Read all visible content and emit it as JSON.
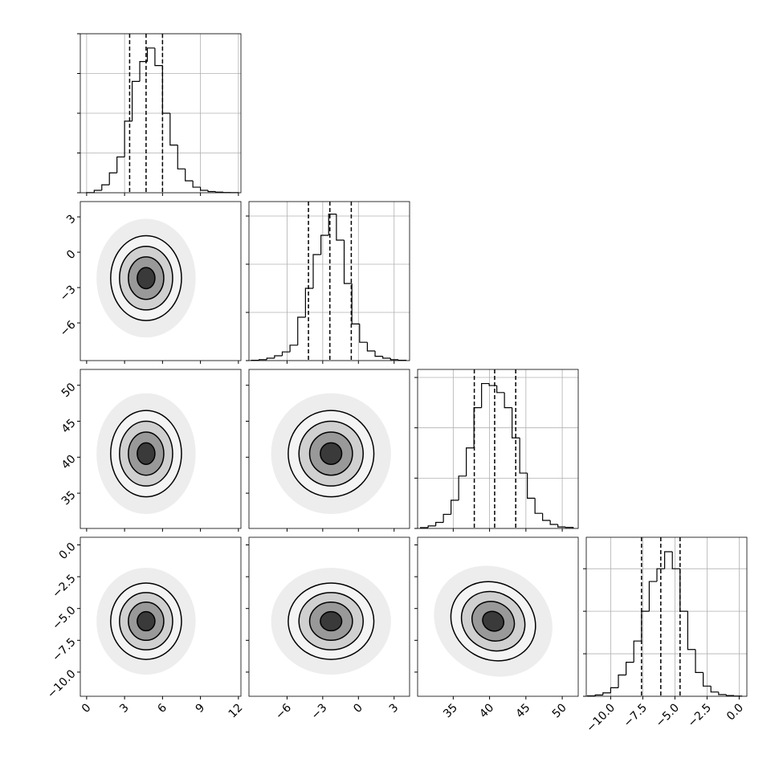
{
  "chart_data": {
    "type": "corner",
    "grid": true,
    "line_color": "#000000",
    "grid_color": "#b0b0b0",
    "contour_fills": [
      "#f4f4f4",
      "#d0d0d0",
      "#999999",
      "#3a3a3a"
    ],
    "params": [
      {
        "lim": [
          -0.5,
          12.2
        ],
        "ticks": [
          0,
          3,
          6,
          9,
          12
        ],
        "quantiles": [
          3.4,
          4.7,
          6.0
        ],
        "contour_radii": [
          0.7,
          1.4,
          2.1,
          2.8
        ],
        "bins": [
          0,
          0.6,
          1.2,
          1.8,
          2.4,
          3,
          3.6,
          4.2,
          4.8,
          5.4,
          6,
          6.6,
          7.2,
          7.8,
          8.4,
          9,
          9.6,
          10.2,
          10.8,
          11.4,
          12
        ],
        "counts": [
          2,
          30,
          100,
          250,
          450,
          900,
          1400,
          1650,
          1820,
          1600,
          1000,
          600,
          300,
          150,
          70,
          30,
          15,
          8,
          3,
          1
        ],
        "ylim": [
          0,
          2000
        ],
        "yticks": [
          0,
          500,
          1000,
          1500,
          2000
        ]
      },
      {
        "lim": [
          -9.2,
          4.3
        ],
        "ticks": [
          {
            "value": -6,
            "label": "−6"
          },
          {
            "value": -3,
            "label": "−3"
          },
          0,
          3
        ],
        "quantiles": [
          -4.2,
          -2.4,
          -0.6
        ],
        "contour_radii": [
          0.9,
          1.8,
          2.7,
          3.6
        ],
        "bins": [
          -9,
          -8.35,
          -7.7,
          -7.05,
          -6.4,
          -5.75,
          -5.1,
          -4.45,
          -3.8,
          -3.15,
          -2.5,
          -1.85,
          -1.2,
          -0.55,
          0.1,
          0.75,
          1.4,
          2.05,
          2.7,
          3.35,
          4
        ],
        "counts": [
          3,
          10,
          25,
          50,
          90,
          160,
          450,
          750,
          1100,
          1300,
          1520,
          1250,
          800,
          380,
          190,
          100,
          45,
          25,
          10,
          3
        ],
        "ylim": [
          0,
          1650
        ],
        "yticks": [
          0,
          500,
          1000,
          1500
        ]
      },
      {
        "lim": [
          30.1,
          52.2
        ],
        "ticks": [
          35,
          40,
          45,
          50
        ],
        "quantiles": [
          37.9,
          40.7,
          43.6
        ],
        "contour_radii": [
          1.5,
          3,
          4.5,
          6
        ],
        "bins": [
          30.5,
          31.55,
          32.6,
          33.65,
          34.7,
          35.75,
          36.8,
          37.85,
          38.9,
          39.95,
          41,
          42.05,
          43.1,
          44.15,
          45.2,
          46.25,
          47.3,
          48.35,
          49.4,
          50.45,
          51.5
        ],
        "counts": [
          8,
          25,
          60,
          140,
          280,
          520,
          800,
          1200,
          1440,
          1420,
          1350,
          1200,
          900,
          550,
          300,
          150,
          80,
          40,
          15,
          10
        ],
        "ylim": [
          0,
          1580
        ],
        "yticks": [
          0,
          500,
          1000,
          1500
        ]
      },
      {
        "lim": [
          -11.9,
          0.6
        ],
        "ticks": [
          {
            "value": -10,
            "label": "−10.0"
          },
          {
            "value": -7.5,
            "label": "−7.5"
          },
          {
            "value": -5,
            "label": "−5.0"
          },
          {
            "value": -2.5,
            "label": "−2.5"
          },
          {
            "value": 0,
            "label": "0.0"
          }
        ],
        "quantiles": [
          -7.6,
          -6.1,
          -4.6
        ],
        "contour_radii": [
          0.75,
          1.5,
          2.25,
          3
        ],
        "bins": [
          -11.8,
          -11.2,
          -10.6,
          -10,
          -9.4,
          -8.8,
          -8.2,
          -7.6,
          -7,
          -6.4,
          -5.8,
          -5.2,
          -4.6,
          -4,
          -3.4,
          -2.8,
          -2.2,
          -1.6,
          -1,
          -0.4,
          0.2
        ],
        "counts": [
          5,
          15,
          40,
          100,
          250,
          400,
          650,
          1000,
          1350,
          1500,
          1700,
          1500,
          1000,
          550,
          280,
          120,
          50,
          20,
          8,
          3
        ],
        "ylim": [
          0,
          1870
        ],
        "yticks": [
          0,
          500,
          1000,
          1500
        ]
      }
    ],
    "pairs": [
      [
        {
          "center": [
            4.7,
            -2.2
          ],
          "tilt": 0
        }
      ],
      [
        {
          "center": [
            4.7,
            40.5
          ],
          "tilt": 0
        },
        {
          "center": [
            -2.3,
            40.5
          ],
          "tilt": 0
        }
      ],
      [
        {
          "center": [
            4.7,
            -6
          ],
          "tilt": 0
        },
        {
          "center": [
            -2.3,
            -6
          ],
          "tilt": 0
        },
        {
          "center": [
            40.5,
            -6
          ],
          "tilt": 30
        }
      ]
    ]
  }
}
